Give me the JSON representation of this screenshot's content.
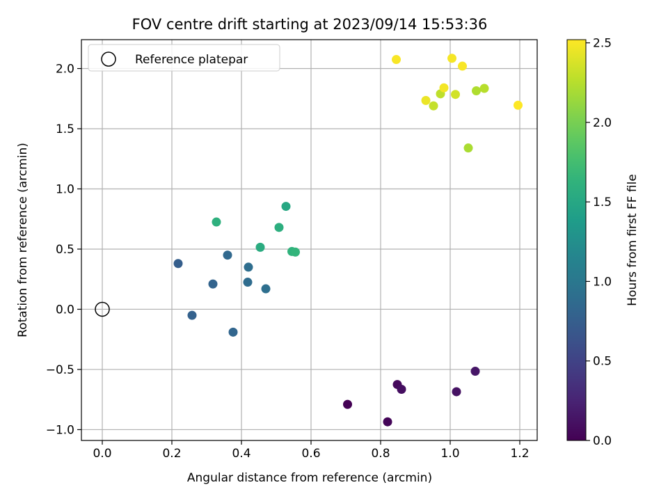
{
  "chart_data": {
    "type": "scatter",
    "title": "FOV centre drift starting at 2023/09/14 15:53:36",
    "xlabel": "Angular distance from reference (arcmin)",
    "ylabel": "Rotation from reference (arcmin)",
    "xlim": [
      -0.06,
      1.25
    ],
    "ylim": [
      -1.09,
      2.24
    ],
    "xticks": [
      0.0,
      0.2,
      0.4,
      0.6,
      0.8,
      1.0,
      1.2
    ],
    "xtick_labels": [
      "0.0",
      "0.2",
      "0.4",
      "0.6",
      "0.8",
      "1.0",
      "1.2"
    ],
    "yticks": [
      -1.0,
      -0.5,
      0.0,
      0.5,
      1.0,
      1.5,
      2.0
    ],
    "ytick_labels": [
      "−1.0",
      "−0.5",
      "0.0",
      "0.5",
      "1.0",
      "1.5",
      "2.0"
    ],
    "grid": true,
    "legend": {
      "placement": "top-left",
      "entries": [
        {
          "label": "Reference platepar",
          "marker": "open-circle",
          "x": 0.0,
          "y": 0.0
        }
      ]
    },
    "colorbar": {
      "label": "Hours from first FF file",
      "range": [
        0.0,
        2.52
      ],
      "ticks": [
        0.0,
        0.5,
        1.0,
        1.5,
        2.0,
        2.5
      ],
      "tick_labels": [
        "0.0",
        "0.5",
        "1.0",
        "1.5",
        "2.0",
        "2.5"
      ],
      "colormap": "viridis"
    },
    "points": [
      {
        "x": 0.705,
        "y": -0.79,
        "c": 0.0
      },
      {
        "x": 0.82,
        "y": -0.935,
        "c": 0.03
      },
      {
        "x": 0.848,
        "y": -0.625,
        "c": 0.06
      },
      {
        "x": 0.86,
        "y": -0.665,
        "c": 0.09
      },
      {
        "x": 1.018,
        "y": -0.685,
        "c": 0.12
      },
      {
        "x": 1.072,
        "y": -0.515,
        "c": 0.15
      },
      {
        "x": 0.218,
        "y": 0.38,
        "c": 0.75
      },
      {
        "x": 0.258,
        "y": -0.05,
        "c": 0.78
      },
      {
        "x": 0.318,
        "y": 0.21,
        "c": 0.8
      },
      {
        "x": 0.36,
        "y": 0.45,
        "c": 0.85
      },
      {
        "x": 0.376,
        "y": -0.19,
        "c": 0.82
      },
      {
        "x": 0.418,
        "y": 0.225,
        "c": 0.88
      },
      {
        "x": 0.42,
        "y": 0.35,
        "c": 0.9
      },
      {
        "x": 0.47,
        "y": 0.17,
        "c": 0.92
      },
      {
        "x": 0.328,
        "y": 0.725,
        "c": 1.6
      },
      {
        "x": 0.454,
        "y": 0.515,
        "c": 1.55
      },
      {
        "x": 0.508,
        "y": 0.68,
        "c": 1.58
      },
      {
        "x": 0.528,
        "y": 0.855,
        "c": 1.5
      },
      {
        "x": 0.545,
        "y": 0.48,
        "c": 1.62
      },
      {
        "x": 0.555,
        "y": 0.475,
        "c": 1.65
      },
      {
        "x": 0.845,
        "y": 2.075,
        "c": 2.5
      },
      {
        "x": 0.93,
        "y": 1.735,
        "c": 2.45
      },
      {
        "x": 0.952,
        "y": 1.69,
        "c": 2.3
      },
      {
        "x": 0.972,
        "y": 1.79,
        "c": 2.28
      },
      {
        "x": 0.982,
        "y": 1.84,
        "c": 2.48
      },
      {
        "x": 1.005,
        "y": 2.085,
        "c": 2.49
      },
      {
        "x": 1.015,
        "y": 1.785,
        "c": 2.35
      },
      {
        "x": 1.035,
        "y": 2.02,
        "c": 2.5
      },
      {
        "x": 1.052,
        "y": 1.34,
        "c": 2.2
      },
      {
        "x": 1.075,
        "y": 1.815,
        "c": 2.22
      },
      {
        "x": 1.098,
        "y": 1.835,
        "c": 2.25
      },
      {
        "x": 1.195,
        "y": 1.695,
        "c": 2.52
      }
    ]
  }
}
